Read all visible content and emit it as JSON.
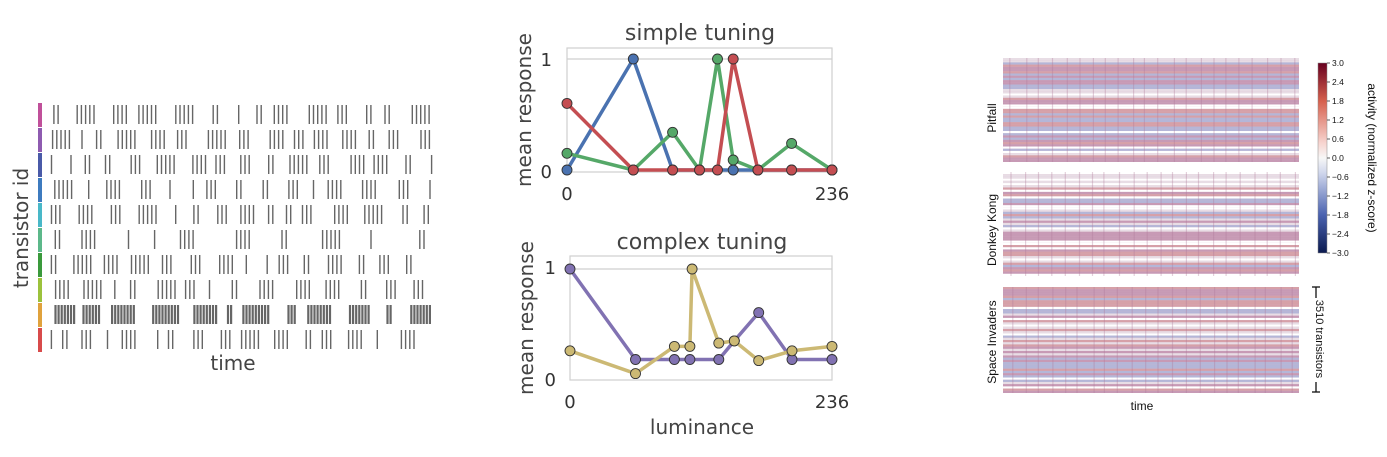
{
  "chart_data": [
    {
      "type": "raster",
      "ylabel": "transistor id",
      "xlabel": "time",
      "row_colors": [
        "#c0509a",
        "#8e5bb0",
        "#4a5aa8",
        "#3e7bbf",
        "#49b8c8",
        "#5cb88a",
        "#3a9a3c",
        "#9cc23c",
        "#e0a23c",
        "#d84b4b"
      ]
    },
    {
      "type": "line",
      "title": "simple tuning",
      "ylabel": "mean response",
      "xlabel": "",
      "xlim": [
        0,
        236
      ],
      "ylim": [
        0,
        1
      ],
      "xticks": [
        "0",
        "236"
      ],
      "yticks": [
        "0",
        "1"
      ],
      "series": [
        {
          "color": "#4a72b0",
          "x": [
            0,
            59,
            94,
            118,
            148,
            170,
            200,
            236
          ],
          "y": [
            0,
            1,
            0,
            0,
            0,
            0,
            0,
            0
          ]
        },
        {
          "color": "#55a868",
          "x": [
            0,
            59,
            94,
            118,
            134,
            148,
            170,
            200,
            236
          ],
          "y": [
            0.15,
            0,
            0.34,
            0,
            1,
            0.09,
            0,
            0.24,
            0
          ]
        },
        {
          "color": "#c44e52",
          "x": [
            0,
            59,
            94,
            118,
            134,
            148,
            170,
            200,
            236
          ],
          "y": [
            0.6,
            0,
            0,
            0,
            0,
            1,
            0,
            0,
            0
          ]
        }
      ]
    },
    {
      "type": "line",
      "title": "complex tuning",
      "ylabel": "mean response",
      "xlabel": "luminance",
      "xlim": [
        0,
        236
      ],
      "ylim": [
        0,
        1
      ],
      "xticks": [
        "0",
        "236"
      ],
      "yticks": [
        "0",
        "1"
      ],
      "series": [
        {
          "color": "#8172b2",
          "x": [
            0,
            59,
            94,
            108,
            134,
            148,
            170,
            200,
            236
          ],
          "y": [
            1,
            0.17,
            0.17,
            0.17,
            0.17,
            0.34,
            0.6,
            0.17,
            0.17
          ]
        },
        {
          "color": "#ccb974",
          "x": [
            0,
            59,
            94,
            108,
            110,
            134,
            148,
            170,
            200,
            236
          ],
          "y": [
            0.25,
            0.04,
            0.29,
            0.29,
            1,
            0.32,
            0.34,
            0.16,
            0.25,
            0.29
          ]
        }
      ]
    },
    {
      "type": "heatmap",
      "panels": [
        "Pitfall",
        "Donkey Kong",
        "Space Invaders"
      ],
      "xlabel": "time",
      "scale_label": "3510 transistors",
      "colorbar": {
        "label": "activity (normalized z-score)",
        "ticks": [
          "3.0",
          "2.4",
          "1.8",
          "1.2",
          "0.6",
          "0.0",
          "−0.6",
          "−1.2",
          "−1.8",
          "−2.4",
          "−3.0"
        ],
        "vmin": -3.0,
        "vmax": 3.0
      }
    }
  ]
}
